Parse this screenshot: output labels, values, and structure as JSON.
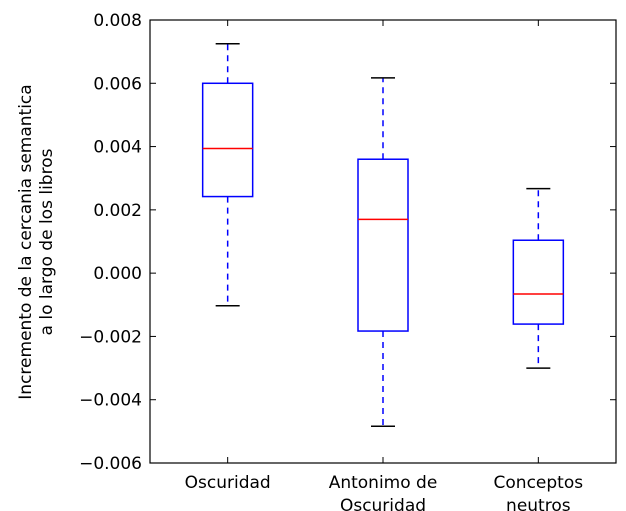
{
  "chart_data": {
    "type": "boxplot",
    "categories": [
      [
        "Oscuridad"
      ],
      [
        "Antonimo de",
        "Oscuridad"
      ],
      [
        "Conceptos",
        "neutros"
      ]
    ],
    "boxes": [
      {
        "whisker_low": -0.00103,
        "q1": 0.00242,
        "median": 0.00394,
        "q3": 0.006,
        "whisker_high": 0.00725
      },
      {
        "whisker_low": -0.00484,
        "q1": -0.00183,
        "median": 0.0017,
        "q3": 0.0036,
        "whisker_high": 0.00617
      },
      {
        "whisker_low": -0.003,
        "q1": -0.00161,
        "median": -0.00066,
        "q3": 0.00104,
        "whisker_high": 0.00267
      }
    ],
    "ylabel_lines": [
      "Incremento de la cercania semantica",
      "a lo largo de los libros"
    ],
    "ylim": [
      -0.006,
      0.008
    ],
    "yticks": [
      "0.008",
      "0.006",
      "0.004",
      "0.002",
      "0.000",
      "−0.002",
      "−0.004",
      "−0.006"
    ],
    "ytick_values": [
      0.008,
      0.006,
      0.004,
      0.002,
      0.0,
      -0.002,
      -0.004,
      -0.006
    ],
    "colors": {
      "box": "#0000ff",
      "median": "#ff0000",
      "whisker": "#0000ff",
      "cap": "#000000"
    },
    "grid": false
  }
}
